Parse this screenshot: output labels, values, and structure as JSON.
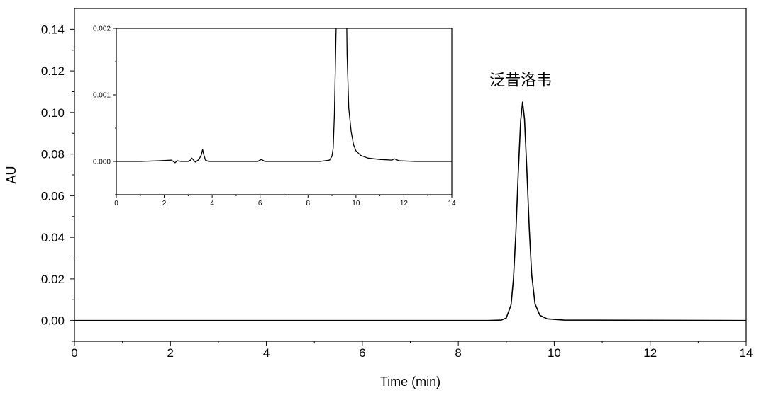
{
  "chart_data": [
    {
      "type": "line",
      "role": "main",
      "title": "",
      "xlabel": "Time (min)",
      "ylabel": "AU",
      "xlim": [
        0,
        14
      ],
      "ylim": [
        -0.01,
        0.15
      ],
      "x_ticks": [
        0,
        2,
        4,
        6,
        8,
        10,
        12,
        14
      ],
      "x_tick_labels": [
        "0",
        "2",
        "4",
        "6",
        "8",
        "10",
        "12",
        "14"
      ],
      "y_ticks": [
        0.0,
        0.02,
        0.04,
        0.06,
        0.08,
        0.1,
        0.12,
        0.14
      ],
      "y_tick_labels": [
        "0.00",
        "0.02",
        "0.04",
        "0.06",
        "0.08",
        "0.10",
        "0.12",
        "0.14"
      ],
      "grid": false,
      "series": [
        {
          "x": [
            0,
            8.6,
            8.9,
            9.0,
            9.1,
            9.15,
            9.2,
            9.25,
            9.3,
            9.34,
            9.38,
            9.43,
            9.48,
            9.53,
            9.6,
            9.7,
            9.85,
            10.2,
            14
          ],
          "y": [
            0.0,
            0.0,
            0.0002,
            0.0012,
            0.0075,
            0.02,
            0.042,
            0.071,
            0.096,
            0.105,
            0.097,
            0.072,
            0.044,
            0.022,
            0.008,
            0.0025,
            0.0008,
            0.0002,
            0.0
          ]
        }
      ],
      "annotations": [
        {
          "text": "泛昔洛韦",
          "x": 9.3,
          "y": 0.113
        }
      ]
    },
    {
      "type": "line",
      "role": "inset",
      "title": "",
      "xlabel": "",
      "ylabel": "",
      "xlim": [
        0,
        14
      ],
      "ylim": [
        -0.0005,
        0.002
      ],
      "x_ticks": [
        0,
        2,
        4,
        6,
        8,
        10,
        12,
        14
      ],
      "x_tick_labels": [
        "0",
        "2",
        "4",
        "6",
        "8",
        "10",
        "12",
        "14"
      ],
      "y_ticks": [
        0.0,
        0.001,
        0.002
      ],
      "y_tick_labels": [
        "0.000",
        "0.001",
        "0.002"
      ],
      "grid": false,
      "series": [
        {
          "x": [
            0,
            1.0,
            1.8,
            2.3,
            2.45,
            2.55,
            2.7,
            3.0,
            3.1,
            3.15,
            3.2,
            3.3,
            3.45,
            3.55,
            3.6,
            3.65,
            3.72,
            3.85,
            4.2,
            5.0,
            5.9,
            6.05,
            6.2,
            6.5,
            7.5,
            8.5,
            8.9,
            9.0,
            9.05,
            9.1,
            9.15,
            9.2,
            9.6,
            9.63,
            9.7,
            9.8,
            9.9,
            10.0,
            10.2,
            10.5,
            11.0,
            11.5,
            11.6,
            11.8,
            12.5,
            14
          ],
          "y": [
            0.0,
            0.0,
            1e-05,
            2e-05,
            -2e-05,
            1e-05,
            0.0,
            0.0,
            2e-05,
            5e-05,
            3e-05,
            -1e-05,
            3e-05,
            0.0001,
            0.00018,
            0.0001,
            2e-05,
            0.0,
            0.0,
            0.0,
            0.0,
            3e-05,
            0.0,
            0.0,
            0.0,
            0.0,
            2e-05,
            8e-05,
            0.0002,
            0.0007,
            0.0016,
            0.0025,
            0.0025,
            0.0016,
            0.0008,
            0.00045,
            0.00025,
            0.00016,
            9e-05,
            5e-05,
            3e-05,
            2e-05,
            4e-05,
            1e-05,
            0.0,
            0.0
          ]
        }
      ]
    }
  ]
}
